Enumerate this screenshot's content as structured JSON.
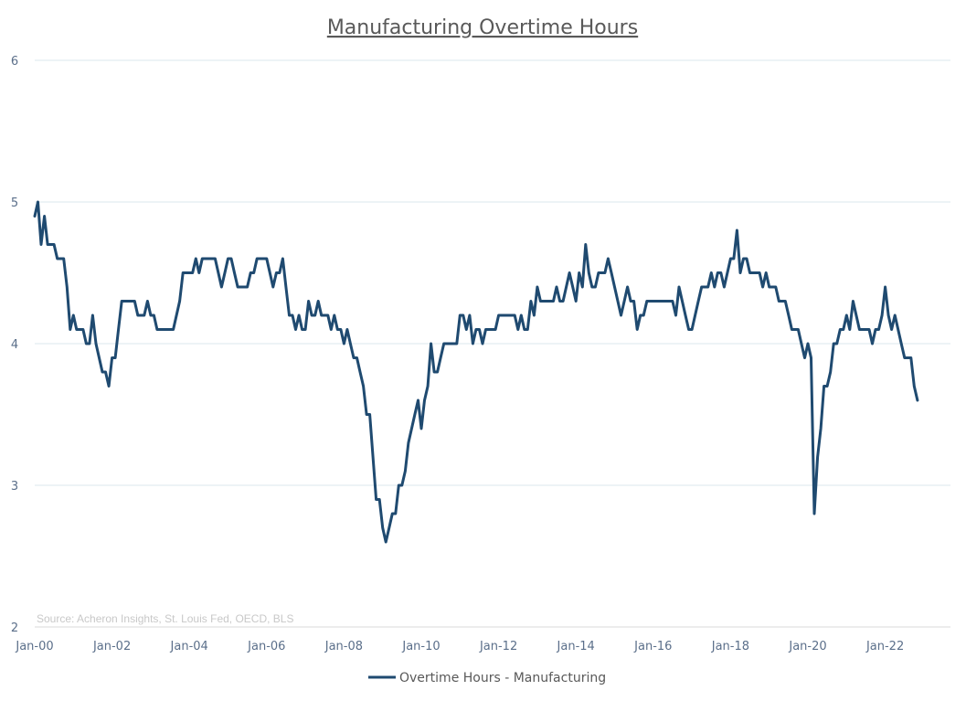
{
  "chart_data": {
    "type": "line",
    "title": "Manufacturing Overtime Hours",
    "source": "Source: Acheron Insights, St. Louis Fed, OECD, BLS",
    "x_tick_labels": [
      "Jan-00",
      "Jan-02",
      "Jan-04",
      "Jan-06",
      "Jan-08",
      "Jan-10",
      "Jan-12",
      "Jan-14",
      "Jan-16",
      "Jan-18",
      "Jan-20",
      "Jan-22"
    ],
    "y_ticks": [
      2,
      3,
      4,
      5,
      6
    ],
    "ylim": [
      2,
      6
    ],
    "x_range_months": [
      0,
      276
    ],
    "grid": true,
    "legend_position": "bottom",
    "series": [
      {
        "name": "Overtime Hours - Manufacturing",
        "color": "#1f4a70",
        "points": [
          [
            0,
            4.9
          ],
          [
            1,
            5.0
          ],
          [
            2,
            4.7
          ],
          [
            3,
            4.9
          ],
          [
            4,
            4.7
          ],
          [
            6,
            4.7
          ],
          [
            7,
            4.6
          ],
          [
            9,
            4.6
          ],
          [
            10,
            4.4
          ],
          [
            11,
            4.1
          ],
          [
            12,
            4.2
          ],
          [
            13,
            4.1
          ],
          [
            15,
            4.1
          ],
          [
            16,
            4.0
          ],
          [
            17,
            4.0
          ],
          [
            18,
            4.2
          ],
          [
            19,
            4.0
          ],
          [
            20,
            3.9
          ],
          [
            21,
            3.8
          ],
          [
            22,
            3.8
          ],
          [
            23,
            3.7
          ],
          [
            24,
            3.9
          ],
          [
            25,
            3.9
          ],
          [
            26,
            4.1
          ],
          [
            27,
            4.3
          ],
          [
            31,
            4.3
          ],
          [
            32,
            4.2
          ],
          [
            34,
            4.2
          ],
          [
            35,
            4.3
          ],
          [
            36,
            4.2
          ],
          [
            37,
            4.2
          ],
          [
            38,
            4.1
          ],
          [
            43,
            4.1
          ],
          [
            44,
            4.2
          ],
          [
            45,
            4.3
          ],
          [
            46,
            4.5
          ],
          [
            49,
            4.5
          ],
          [
            50,
            4.6
          ],
          [
            51,
            4.5
          ],
          [
            52,
            4.6
          ],
          [
            56,
            4.6
          ],
          [
            57,
            4.5
          ],
          [
            58,
            4.4
          ],
          [
            59,
            4.5
          ],
          [
            60,
            4.6
          ],
          [
            61,
            4.6
          ],
          [
            62,
            4.5
          ],
          [
            63,
            4.4
          ],
          [
            66,
            4.4
          ],
          [
            67,
            4.5
          ],
          [
            68,
            4.5
          ],
          [
            69,
            4.6
          ],
          [
            72,
            4.6
          ],
          [
            73,
            4.5
          ],
          [
            74,
            4.4
          ],
          [
            75,
            4.5
          ],
          [
            76,
            4.5
          ],
          [
            77,
            4.6
          ],
          [
            78,
            4.4
          ],
          [
            79,
            4.2
          ],
          [
            80,
            4.2
          ],
          [
            81,
            4.1
          ],
          [
            82,
            4.2
          ],
          [
            83,
            4.1
          ],
          [
            84,
            4.1
          ],
          [
            85,
            4.3
          ],
          [
            86,
            4.2
          ],
          [
            87,
            4.2
          ],
          [
            88,
            4.3
          ],
          [
            89,
            4.2
          ],
          [
            91,
            4.2
          ],
          [
            92,
            4.1
          ],
          [
            93,
            4.2
          ],
          [
            94,
            4.1
          ],
          [
            95,
            4.1
          ],
          [
            96,
            4.0
          ],
          [
            97,
            4.1
          ],
          [
            98,
            4.0
          ],
          [
            99,
            3.9
          ],
          [
            100,
            3.9
          ],
          [
            101,
            3.8
          ],
          [
            102,
            3.7
          ],
          [
            103,
            3.5
          ],
          [
            104,
            3.5
          ],
          [
            105,
            3.2
          ],
          [
            106,
            2.9
          ],
          [
            107,
            2.9
          ],
          [
            108,
            2.7
          ],
          [
            109,
            2.6
          ],
          [
            110,
            2.7
          ],
          [
            111,
            2.8
          ],
          [
            112,
            2.8
          ],
          [
            113,
            3.0
          ],
          [
            114,
            3.0
          ],
          [
            115,
            3.1
          ],
          [
            116,
            3.3
          ],
          [
            117,
            3.4
          ],
          [
            118,
            3.5
          ],
          [
            119,
            3.6
          ],
          [
            120,
            3.4
          ],
          [
            121,
            3.6
          ],
          [
            122,
            3.7
          ],
          [
            123,
            4.0
          ],
          [
            124,
            3.8
          ],
          [
            125,
            3.8
          ],
          [
            126,
            3.9
          ],
          [
            127,
            4.0
          ],
          [
            131,
            4.0
          ],
          [
            132,
            4.2
          ],
          [
            133,
            4.2
          ],
          [
            134,
            4.1
          ],
          [
            135,
            4.2
          ],
          [
            136,
            4.0
          ],
          [
            137,
            4.1
          ],
          [
            138,
            4.1
          ],
          [
            139,
            4.0
          ],
          [
            140,
            4.1
          ],
          [
            143,
            4.1
          ],
          [
            144,
            4.2
          ],
          [
            149,
            4.2
          ],
          [
            150,
            4.1
          ],
          [
            151,
            4.2
          ],
          [
            152,
            4.1
          ],
          [
            153,
            4.1
          ],
          [
            154,
            4.3
          ],
          [
            155,
            4.2
          ],
          [
            156,
            4.4
          ],
          [
            157,
            4.3
          ],
          [
            161,
            4.3
          ],
          [
            162,
            4.4
          ],
          [
            163,
            4.3
          ],
          [
            164,
            4.3
          ],
          [
            165,
            4.4
          ],
          [
            166,
            4.5
          ],
          [
            167,
            4.4
          ],
          [
            168,
            4.3
          ],
          [
            169,
            4.5
          ],
          [
            170,
            4.4
          ],
          [
            171,
            4.7
          ],
          [
            172,
            4.5
          ],
          [
            173,
            4.4
          ],
          [
            174,
            4.4
          ],
          [
            175,
            4.5
          ],
          [
            177,
            4.5
          ],
          [
            178,
            4.6
          ],
          [
            179,
            4.5
          ],
          [
            180,
            4.4
          ],
          [
            181,
            4.3
          ],
          [
            182,
            4.2
          ],
          [
            183,
            4.3
          ],
          [
            184,
            4.4
          ],
          [
            185,
            4.3
          ],
          [
            186,
            4.3
          ],
          [
            187,
            4.1
          ],
          [
            188,
            4.2
          ],
          [
            189,
            4.2
          ],
          [
            190,
            4.3
          ],
          [
            198,
            4.3
          ],
          [
            199,
            4.2
          ],
          [
            200,
            4.4
          ],
          [
            201,
            4.3
          ],
          [
            202,
            4.2
          ],
          [
            203,
            4.1
          ],
          [
            204,
            4.1
          ],
          [
            205,
            4.2
          ],
          [
            206,
            4.3
          ],
          [
            207,
            4.4
          ],
          [
            209,
            4.4
          ],
          [
            210,
            4.5
          ],
          [
            211,
            4.4
          ],
          [
            212,
            4.5
          ],
          [
            213,
            4.5
          ],
          [
            214,
            4.4
          ],
          [
            215,
            4.5
          ],
          [
            216,
            4.6
          ],
          [
            217,
            4.6
          ],
          [
            218,
            4.8
          ],
          [
            219,
            4.5
          ],
          [
            220,
            4.6
          ],
          [
            221,
            4.6
          ],
          [
            222,
            4.5
          ],
          [
            225,
            4.5
          ],
          [
            226,
            4.4
          ],
          [
            227,
            4.5
          ],
          [
            228,
            4.4
          ],
          [
            230,
            4.4
          ],
          [
            231,
            4.3
          ],
          [
            233,
            4.3
          ],
          [
            234,
            4.2
          ],
          [
            235,
            4.1
          ],
          [
            237,
            4.1
          ],
          [
            238,
            4.0
          ],
          [
            239,
            3.9
          ],
          [
            240,
            4.0
          ],
          [
            241,
            3.9
          ],
          [
            242,
            2.8
          ],
          [
            243,
            3.2
          ],
          [
            244,
            3.4
          ],
          [
            245,
            3.7
          ],
          [
            246,
            3.7
          ],
          [
            247,
            3.8
          ],
          [
            248,
            4.0
          ],
          [
            249,
            4.0
          ],
          [
            250,
            4.1
          ],
          [
            251,
            4.1
          ],
          [
            252,
            4.2
          ],
          [
            253,
            4.1
          ],
          [
            254,
            4.3
          ],
          [
            255,
            4.2
          ],
          [
            256,
            4.1
          ],
          [
            259,
            4.1
          ],
          [
            260,
            4.0
          ],
          [
            261,
            4.1
          ],
          [
            262,
            4.1
          ],
          [
            263,
            4.2
          ],
          [
            264,
            4.4
          ],
          [
            265,
            4.2
          ],
          [
            266,
            4.1
          ],
          [
            267,
            4.2
          ],
          [
            268,
            4.1
          ],
          [
            269,
            4.0
          ],
          [
            270,
            3.9
          ],
          [
            272,
            3.9
          ],
          [
            273,
            3.7
          ],
          [
            274,
            3.6
          ]
        ]
      }
    ]
  }
}
